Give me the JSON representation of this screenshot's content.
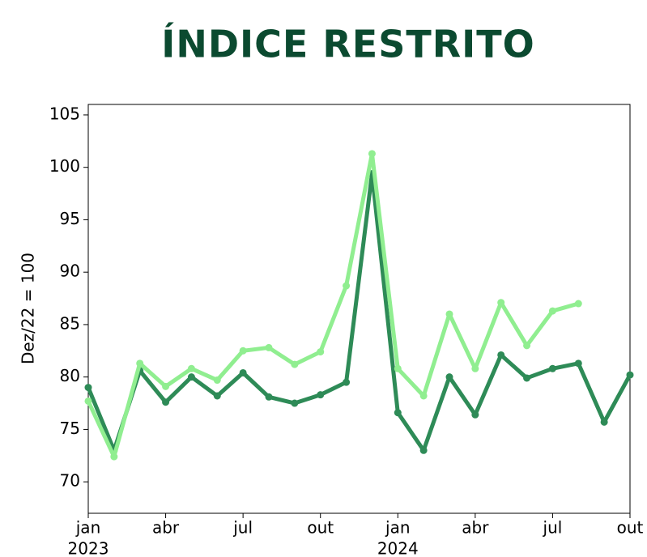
{
  "chart_data": {
    "type": "line",
    "title": "ÍNDICE RESTRITO",
    "y_label": "Dez/22 = 100",
    "x": [
      "2023-01",
      "2023-02",
      "2023-03",
      "2023-04",
      "2023-05",
      "2023-06",
      "2023-07",
      "2023-08",
      "2023-09",
      "2023-10",
      "2023-11",
      "2023-12",
      "2024-01",
      "2024-02",
      "2024-03",
      "2024-04",
      "2024-05",
      "2024-06",
      "2024-07",
      "2024-08",
      "2024-09",
      "2024-10"
    ],
    "series": [
      {
        "color": "#2e8b57",
        "values": [
          79.0,
          73.0,
          80.6,
          77.6,
          80.0,
          78.2,
          80.4,
          78.1,
          77.5,
          78.3,
          79.5,
          99.4,
          76.6,
          73.0,
          80.0,
          76.4,
          82.1,
          79.9,
          80.8,
          81.3,
          75.7,
          80.2
        ]
      },
      {
        "color": "#90ee90",
        "values": [
          77.7,
          72.4,
          81.3,
          79.1,
          80.8,
          79.7,
          82.5,
          82.8,
          81.2,
          82.4,
          88.7,
          101.3,
          80.8,
          78.2,
          86.0,
          80.8,
          87.1,
          83.0,
          86.3,
          87.0,
          null,
          null
        ]
      }
    ],
    "xlim": [
      "2023-01",
      "2024-10"
    ],
    "xticks": [
      {
        "value": "2023-01",
        "label": "jan",
        "year": "2023"
      },
      {
        "value": "2023-04",
        "label": "abr"
      },
      {
        "value": "2023-07",
        "label": "jul"
      },
      {
        "value": "2023-10",
        "label": "out"
      },
      {
        "value": "2024-01",
        "label": "jan",
        "year": "2024"
      },
      {
        "value": "2024-04",
        "label": "abr"
      },
      {
        "value": "2024-07",
        "label": "jul"
      },
      {
        "value": "2024-10",
        "label": "out"
      }
    ],
    "ylim": [
      67,
      106
    ],
    "yticks": [
      70,
      75,
      80,
      85,
      90,
      95,
      100,
      105
    ]
  }
}
